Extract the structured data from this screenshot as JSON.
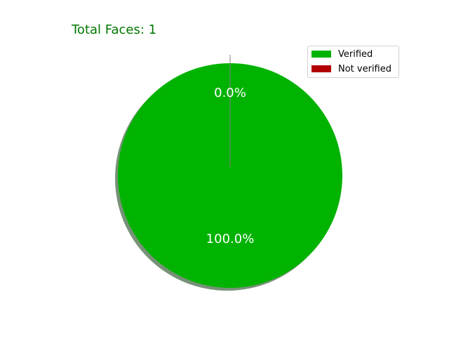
{
  "chart_data": {
    "type": "pie",
    "title": "Total Faces: 1",
    "title_color": "#007700",
    "categories": [
      "Verified",
      "Not verified"
    ],
    "values": [
      1,
      0
    ],
    "percent_labels": [
      "100.0%",
      "0.0%"
    ],
    "colors": [
      "#00b300",
      "#b30000"
    ],
    "label_color": "#ffffff",
    "shadow": true,
    "explode_not_verified": true,
    "legend_position": "upper-right"
  }
}
